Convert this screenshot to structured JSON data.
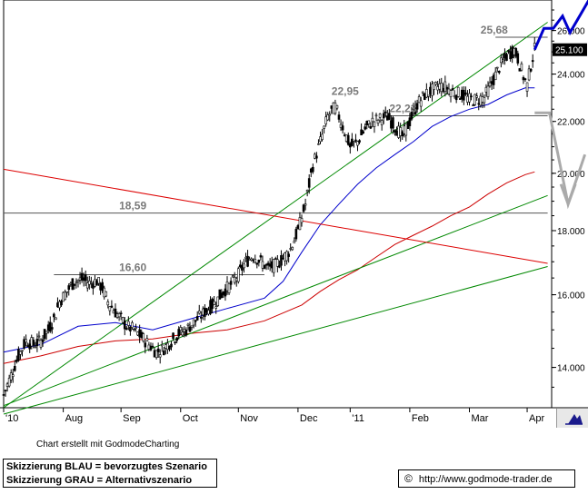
{
  "chart_data": {
    "type": "candlestick",
    "x_labels": [
      "'10",
      "Aug",
      "Sep",
      "Oct",
      "Nov",
      "Dec",
      "'11",
      "Feb",
      "Mar",
      "Apr"
    ],
    "y_ticks": [
      14.0,
      16.0,
      18.0,
      20.0,
      22.0,
      24.0,
      26.0
    ],
    "y_tick_labels": [
      "14.000",
      "16.000",
      "18.000",
      "20.000",
      "22.000",
      "24.000",
      "26.000"
    ],
    "y_scale": "log",
    "ylim": [
      13.0,
      27.5
    ],
    "grid": false,
    "last_price_label": "25.100",
    "last_price": 25.1,
    "price_path": [
      [
        0,
        13.3
      ],
      [
        4,
        13.8
      ],
      [
        8,
        14.3
      ],
      [
        12,
        14.7
      ],
      [
        16,
        14.6
      ],
      [
        20,
        14.7
      ],
      [
        24,
        15.0
      ],
      [
        27,
        15.3
      ],
      [
        30,
        15.8
      ],
      [
        34,
        16.1
      ],
      [
        38,
        16.4
      ],
      [
        42,
        16.45
      ],
      [
        46,
        16.35
      ],
      [
        50,
        16.4
      ],
      [
        53,
        16.2
      ],
      [
        56,
        15.8
      ],
      [
        60,
        15.5
      ],
      [
        63,
        15.3
      ],
      [
        66,
        15.1
      ],
      [
        70,
        15.0
      ],
      [
        74,
        14.8
      ],
      [
        78,
        14.6
      ],
      [
        82,
        14.4
      ],
      [
        86,
        14.5
      ],
      [
        90,
        14.7
      ],
      [
        94,
        14.9
      ],
      [
        98,
        15.0
      ],
      [
        102,
        15.2
      ],
      [
        106,
        15.4
      ],
      [
        110,
        15.6
      ],
      [
        114,
        15.8
      ],
      [
        118,
        16.1
      ],
      [
        122,
        16.3
      ],
      [
        126,
        16.6
      ],
      [
        130,
        17.0
      ],
      [
        134,
        17.2
      ],
      [
        138,
        17.0
      ],
      [
        142,
        16.8
      ],
      [
        146,
        16.9
      ],
      [
        150,
        17.1
      ],
      [
        154,
        17.4
      ],
      [
        158,
        18.0
      ],
      [
        162,
        18.9
      ],
      [
        166,
        20.3
      ],
      [
        170,
        21.2
      ],
      [
        174,
        22.2
      ],
      [
        178,
        22.6
      ],
      [
        182,
        21.8
      ],
      [
        186,
        21.0
      ],
      [
        190,
        21.2
      ],
      [
        194,
        21.7
      ],
      [
        198,
        22.0
      ],
      [
        202,
        22.1
      ],
      [
        206,
        22.2
      ],
      [
        210,
        21.8
      ],
      [
        214,
        21.4
      ],
      [
        218,
        22.0
      ],
      [
        222,
        22.7
      ],
      [
        226,
        23.1
      ],
      [
        230,
        23.3
      ],
      [
        234,
        23.5
      ],
      [
        238,
        23.4
      ],
      [
        242,
        23.2
      ],
      [
        246,
        23.1
      ],
      [
        250,
        22.9
      ],
      [
        254,
        22.9
      ],
      [
        258,
        23.0
      ],
      [
        262,
        23.6
      ],
      [
        266,
        24.3
      ],
      [
        270,
        24.8
      ],
      [
        274,
        25.1
      ],
      [
        276,
        24.7
      ],
      [
        279,
        23.9
      ],
      [
        281,
        23.5
      ],
      [
        283,
        24.4
      ],
      [
        285,
        25.1
      ]
    ],
    "series": [
      {
        "name": "",
        "kind": "moving-average",
        "color": "#0000cc",
        "width": 1,
        "points": [
          [
            0,
            14.4
          ],
          [
            20,
            14.6
          ],
          [
            40,
            15.1
          ],
          [
            60,
            15.2
          ],
          [
            80,
            15.0
          ],
          [
            100,
            15.3
          ],
          [
            120,
            15.6
          ],
          [
            140,
            15.9
          ],
          [
            150,
            16.4
          ],
          [
            160,
            17.3
          ],
          [
            170,
            18.2
          ],
          [
            180,
            18.9
          ],
          [
            190,
            19.6
          ],
          [
            200,
            20.2
          ],
          [
            210,
            20.7
          ],
          [
            220,
            21.2
          ],
          [
            230,
            21.8
          ],
          [
            240,
            22.2
          ],
          [
            250,
            22.5
          ],
          [
            260,
            22.7
          ],
          [
            270,
            23.1
          ],
          [
            280,
            23.4
          ],
          [
            285,
            23.4
          ]
        ]
      },
      {
        "name": "",
        "kind": "moving-average",
        "color": "#cc0000",
        "width": 1,
        "points": [
          [
            0,
            14.1
          ],
          [
            20,
            14.3
          ],
          [
            40,
            14.55
          ],
          [
            60,
            14.7
          ],
          [
            80,
            14.75
          ],
          [
            100,
            14.9
          ],
          [
            120,
            15.0
          ],
          [
            140,
            15.25
          ],
          [
            160,
            15.7
          ],
          [
            170,
            16.1
          ],
          [
            180,
            16.45
          ],
          [
            190,
            16.75
          ],
          [
            200,
            17.15
          ],
          [
            210,
            17.55
          ],
          [
            220,
            17.85
          ],
          [
            230,
            18.15
          ],
          [
            240,
            18.5
          ],
          [
            250,
            18.8
          ],
          [
            260,
            19.25
          ],
          [
            270,
            19.65
          ],
          [
            280,
            19.95
          ],
          [
            285,
            20.05
          ]
        ]
      },
      {
        "name": "",
        "kind": "trendline",
        "color": "#008800",
        "width": 1,
        "points": [
          [
            0,
            13.0
          ],
          [
            292,
            26.4
          ]
        ]
      },
      {
        "name": "",
        "kind": "trendline",
        "color": "#008800",
        "width": 1,
        "points": [
          [
            0,
            13.05
          ],
          [
            292,
            19.2
          ]
        ]
      },
      {
        "name": "",
        "kind": "trendline",
        "color": "#008800",
        "width": 1,
        "points": [
          [
            0,
            12.85
          ],
          [
            292,
            16.85
          ]
        ]
      },
      {
        "name": "",
        "kind": "trendline",
        "color": "#dd0000",
        "width": 1,
        "points": [
          [
            0,
            20.15
          ],
          [
            292,
            16.95
          ]
        ]
      },
      {
        "name": "",
        "kind": "scenario",
        "color": "#0000cc",
        "width": 3,
        "points": [
          [
            285,
            25.1
          ],
          [
            290,
            26.1
          ],
          [
            295,
            26.1
          ],
          [
            300,
            26.7
          ],
          [
            304,
            25.9
          ],
          [
            316,
            27.8
          ]
        ]
      },
      {
        "name": "",
        "kind": "scenario",
        "color": "#aaaaaa",
        "width": 3,
        "points": [
          [
            285,
            22.35
          ],
          [
            293,
            22.35
          ],
          [
            303,
            18.9
          ],
          [
            312,
            20.7
          ]
        ]
      }
    ],
    "levels": [
      {
        "label": "16,60",
        "value": 16.6,
        "x_start": 27,
        "x_end": 140
      },
      {
        "label": "18,59",
        "value": 18.59,
        "x_start": 0,
        "x_end": 292
      },
      {
        "label": "22,23",
        "value": 22.23,
        "x_start": 205,
        "x_end": 292
      },
      {
        "label": "25,68",
        "value": 25.68,
        "x_start": 264,
        "x_end": 292
      }
    ],
    "annotations": [
      {
        "text": "22,95",
        "x": 176,
        "y": 22.95
      },
      {
        "text": "25,68",
        "x": 256,
        "y": 25.68
      },
      {
        "text": "22,23",
        "x": 207,
        "y": 22.23
      },
      {
        "text": "18,59",
        "x": 62,
        "y": 18.59
      },
      {
        "text": "16,60",
        "x": 62,
        "y": 16.6
      }
    ]
  },
  "footer": {
    "credit": "Chart erstellt mit GodmodeCharting",
    "legend_blue": "Skizzierung BLAU = bevorzugtes Szenario",
    "legend_gray": "Skizzierung GRAU = Alternativszenario",
    "copyright_symbol": "©",
    "url": "http://www.godmode-trader.de"
  },
  "icons": {
    "nav": "chart-scroll-icon"
  }
}
